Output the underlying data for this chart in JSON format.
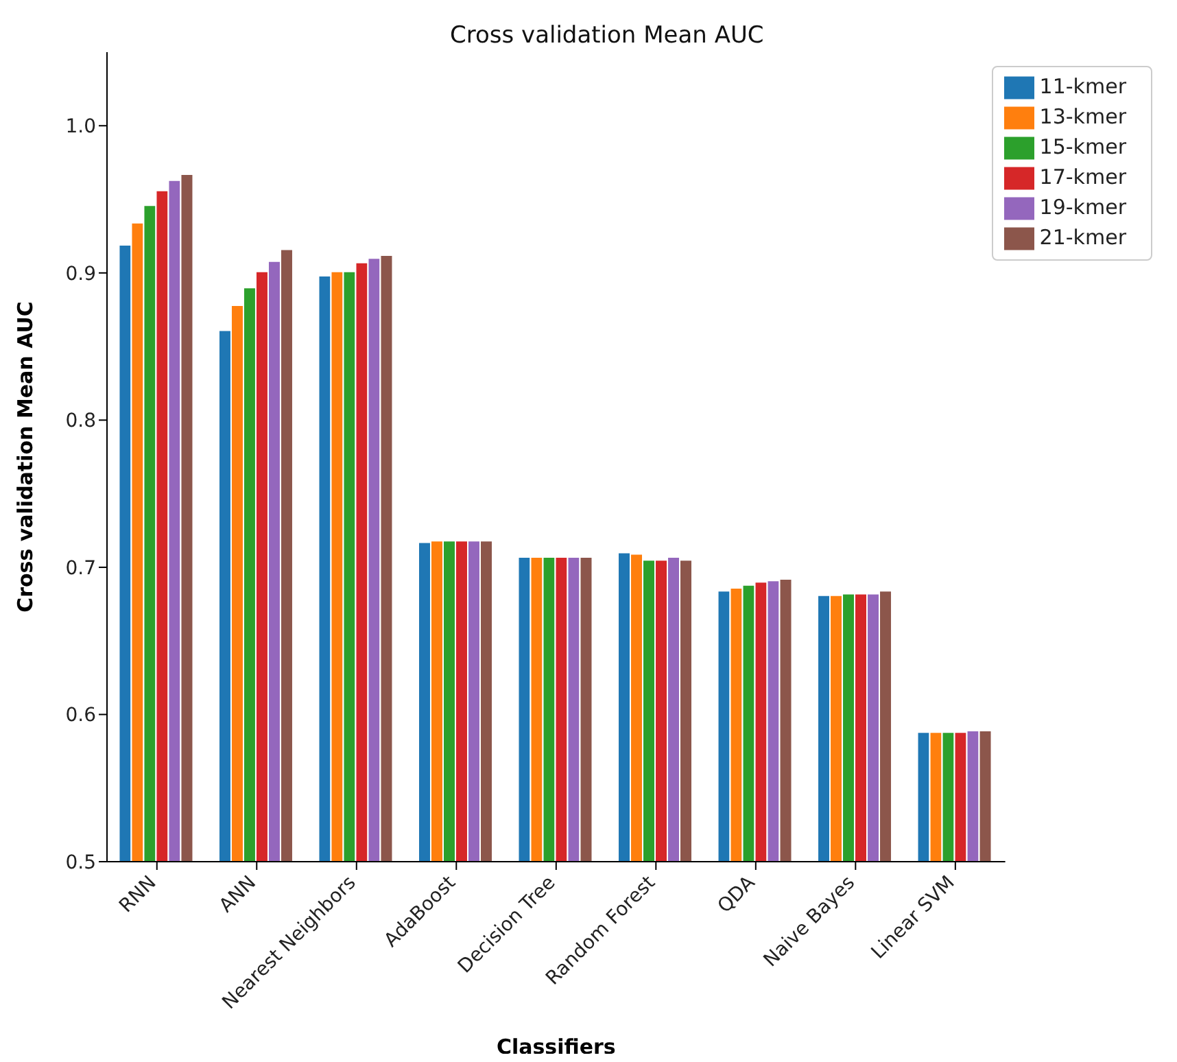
{
  "chart_data": {
    "type": "bar",
    "title": "Cross validation Mean AUC",
    "xlabel": "Classifiers",
    "ylabel": "Cross validation Mean AUC",
    "categories": [
      "RNN",
      "ANN",
      "Nearest Neighbors",
      "AdaBoost",
      "Decision Tree",
      "Random Forest",
      "QDA",
      "Naive Bayes",
      "Linear SVM"
    ],
    "series": [
      {
        "name": "11-kmer",
        "color": "#1f77b4",
        "values": [
          0.919,
          0.861,
          0.898,
          0.717,
          0.707,
          0.71,
          0.684,
          0.681,
          0.588
        ]
      },
      {
        "name": "13-kmer",
        "color": "#ff7f0e",
        "values": [
          0.934,
          0.878,
          0.901,
          0.718,
          0.707,
          0.709,
          0.686,
          0.681,
          0.588
        ]
      },
      {
        "name": "15-kmer",
        "color": "#2ca02c",
        "values": [
          0.946,
          0.89,
          0.901,
          0.718,
          0.707,
          0.705,
          0.688,
          0.682,
          0.588
        ]
      },
      {
        "name": "17-kmer",
        "color": "#d62728",
        "values": [
          0.956,
          0.901,
          0.907,
          0.718,
          0.707,
          0.705,
          0.69,
          0.682,
          0.588
        ]
      },
      {
        "name": "19-kmer",
        "color": "#9467bd",
        "values": [
          0.963,
          0.908,
          0.91,
          0.718,
          0.707,
          0.707,
          0.691,
          0.682,
          0.589
        ]
      },
      {
        "name": "21-kmer",
        "color": "#8c564b",
        "values": [
          0.967,
          0.916,
          0.912,
          0.718,
          0.707,
          0.705,
          0.692,
          0.684,
          0.589
        ]
      }
    ],
    "ylim": [
      0.5,
      1.05
    ],
    "yticks": [
      {
        "value": 0.5,
        "label": "0.5"
      },
      {
        "value": 0.6,
        "label": "0.6"
      },
      {
        "value": 0.7,
        "label": "0.7"
      },
      {
        "value": 0.8,
        "label": "0.8"
      },
      {
        "value": 0.9,
        "label": "0.9"
      },
      {
        "value": 1.0,
        "label": "1.0"
      }
    ],
    "legend": "top right",
    "grid": false
  }
}
